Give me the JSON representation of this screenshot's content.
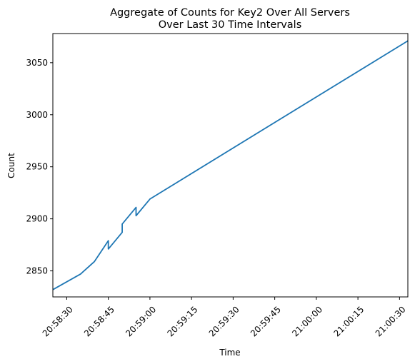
{
  "chart_data": {
    "type": "line",
    "title": [
      "Aggregate of Counts for Key2 Over All Servers",
      "Over Last 30 Time Intervals"
    ],
    "xlabel": "Time",
    "ylabel": "Count",
    "x_type": "time",
    "xlim": [
      "20:58:25",
      "21:00:33"
    ],
    "ylim": [
      2825,
      3078
    ],
    "x_ticks": [
      "20:58:30",
      "20:58:45",
      "20:59:00",
      "20:59:15",
      "20:59:30",
      "20:59:45",
      "21:00:00",
      "21:00:15",
      "21:00:30"
    ],
    "y_ticks": [
      2850,
      2900,
      2950,
      3000,
      3050
    ],
    "grid": false,
    "legend": "none",
    "series": [
      {
        "color": "#1f77b4",
        "points": [
          {
            "x": "20:58:25",
            "y": 2832
          },
          {
            "x": "20:58:35",
            "y": 2847
          },
          {
            "x": "20:58:40",
            "y": 2859
          },
          {
            "x": "20:58:45",
            "y": 2879
          },
          {
            "x": "20:58:45",
            "y": 2871
          },
          {
            "x": "20:58:50",
            "y": 2887
          },
          {
            "x": "20:58:50",
            "y": 2895
          },
          {
            "x": "20:58:55",
            "y": 2911
          },
          {
            "x": "20:58:55",
            "y": 2903
          },
          {
            "x": "20:59:00",
            "y": 2919
          },
          {
            "x": "21:00:33",
            "y": 3071
          }
        ]
      }
    ]
  }
}
